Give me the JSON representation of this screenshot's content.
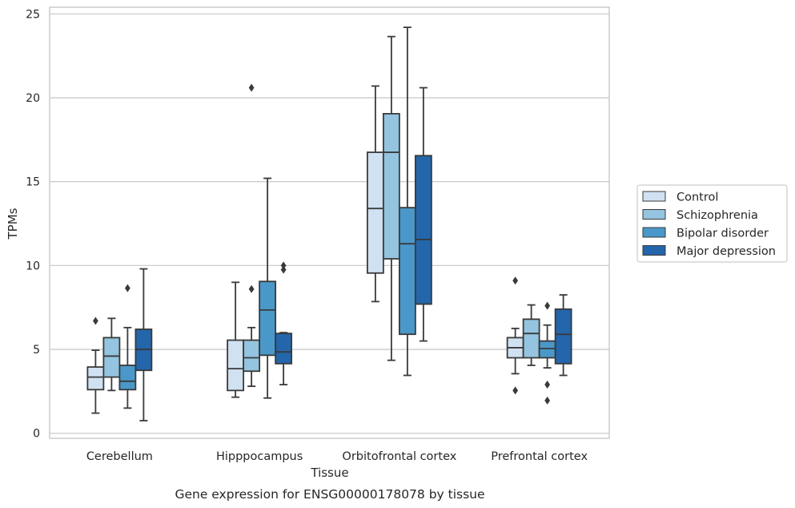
{
  "chart_data": {
    "type": "box",
    "caption": "Gene expression for ENSG00000178078 by tissue",
    "xlabel": "Tissue",
    "ylabel": "TPMs",
    "ylim": [
      -0.3,
      25.4
    ],
    "yticks": [
      0,
      5,
      10,
      15,
      20,
      25
    ],
    "grid": "horizontal",
    "legend_position": "right",
    "categories": [
      "Cerebellum",
      "Hipppocampus",
      "Orbitofrontal cortex",
      "Prefrontal cortex"
    ],
    "series": [
      {
        "name": "Control",
        "color": "#d0e1f2",
        "boxes": [
          {
            "whislo": 1.2,
            "q1": 2.6,
            "med": 3.35,
            "q3": 3.95,
            "whishi": 4.95,
            "fliers": [
              6.7
            ]
          },
          {
            "whislo": 2.15,
            "q1": 2.55,
            "med": 3.85,
            "q3": 5.55,
            "whishi": 9.0,
            "fliers": []
          },
          {
            "whislo": 7.85,
            "q1": 9.55,
            "med": 13.4,
            "q3": 16.75,
            "whishi": 20.7,
            "fliers": []
          },
          {
            "whislo": 3.55,
            "q1": 4.5,
            "med": 5.1,
            "q3": 5.7,
            "whishi": 6.25,
            "fliers": [
              9.1,
              2.55
            ]
          }
        ]
      },
      {
        "name": "Schizophrenia",
        "color": "#94c4df",
        "boxes": [
          {
            "whislo": 2.55,
            "q1": 3.35,
            "med": 4.6,
            "q3": 5.7,
            "whishi": 6.85,
            "fliers": []
          },
          {
            "whislo": 2.8,
            "q1": 3.7,
            "med": 4.5,
            "q3": 5.55,
            "whishi": 6.3,
            "fliers": [
              8.6,
              20.6
            ]
          },
          {
            "whislo": 4.35,
            "q1": 10.4,
            "med": 16.75,
            "q3": 19.05,
            "whishi": 23.65,
            "fliers": []
          },
          {
            "whislo": 4.05,
            "q1": 4.5,
            "med": 5.95,
            "q3": 6.8,
            "whishi": 7.65,
            "fliers": []
          }
        ]
      },
      {
        "name": "Bipolar disorder",
        "color": "#4a98c9",
        "boxes": [
          {
            "whislo": 1.5,
            "q1": 2.6,
            "med": 3.1,
            "q3": 4.05,
            "whishi": 6.3,
            "fliers": [
              8.65
            ]
          },
          {
            "whislo": 2.1,
            "q1": 4.65,
            "med": 7.35,
            "q3": 9.05,
            "whishi": 15.2,
            "fliers": []
          },
          {
            "whislo": 3.45,
            "q1": 5.9,
            "med": 11.3,
            "q3": 13.45,
            "whishi": 24.2,
            "fliers": []
          },
          {
            "whislo": 3.9,
            "q1": 4.5,
            "med": 5.05,
            "q3": 5.5,
            "whishi": 6.45,
            "fliers": [
              7.6,
              2.9,
              1.95
            ]
          }
        ]
      },
      {
        "name": "Major depression",
        "color": "#2366ab",
        "boxes": [
          {
            "whislo": 0.75,
            "q1": 3.75,
            "med": 5.0,
            "q3": 6.2,
            "whishi": 9.8,
            "fliers": []
          },
          {
            "whislo": 2.9,
            "q1": 4.15,
            "med": 4.85,
            "q3": 5.95,
            "whishi": 6.0,
            "fliers": [
              9.75,
              10.0
            ]
          },
          {
            "whislo": 5.5,
            "q1": 7.7,
            "med": 11.55,
            "q3": 16.55,
            "whishi": 20.6,
            "fliers": []
          },
          {
            "whislo": 3.45,
            "q1": 4.15,
            "med": 5.9,
            "q3": 7.4,
            "whishi": 8.25,
            "fliers": []
          }
        ]
      }
    ],
    "style": {
      "line_color": "#3a3a3a",
      "grid_color": "#cccccc",
      "frame_color": "#cccccc"
    }
  }
}
